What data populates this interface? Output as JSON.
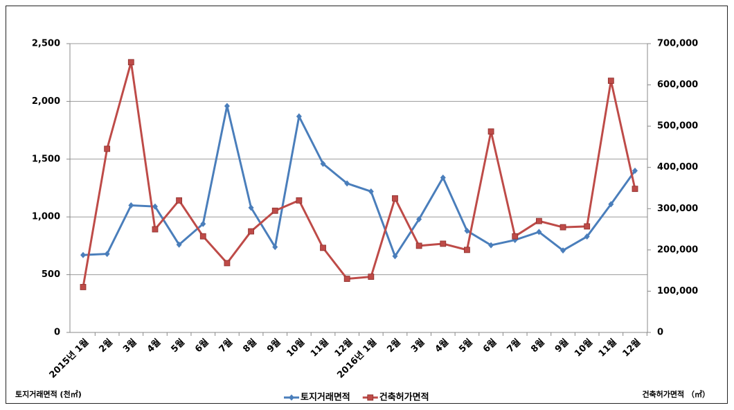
{
  "chart_data": {
    "type": "line",
    "categories": [
      "2015년 1월",
      "2월",
      "3월",
      "4월",
      "5월",
      "6월",
      "7월",
      "8월",
      "9월",
      "10월",
      "11월",
      "12월",
      "2016년 1월",
      "2월",
      "3월",
      "4월",
      "5월",
      "6월",
      "7월",
      "8월",
      "9월",
      "10월",
      "11월",
      "12월"
    ],
    "series": [
      {
        "name": "토지거래면적",
        "color": "#4a7ebb",
        "marker": "diamond",
        "values": [
          670,
          680,
          1100,
          1090,
          760,
          940,
          1960,
          1080,
          740,
          1870,
          1460,
          1290,
          1220,
          660,
          980,
          1340,
          880,
          755,
          800,
          870,
          710,
          830,
          1110,
          1400
        ]
      },
      {
        "name": "건축허가면적",
        "color": "#be4b48",
        "marker": "square",
        "axis": "y2",
        "values": [
          110000,
          445000,
          655000,
          250000,
          320000,
          233000,
          168000,
          245000,
          295000,
          320000,
          205000,
          130000,
          135000,
          325000,
          210000,
          215000,
          200000,
          487000,
          233000,
          270000,
          255000,
          257000,
          610000,
          348000
        ]
      }
    ],
    "ylim": [
      0,
      2500
    ],
    "yticks": [
      0,
      500,
      {
        "value": 1000,
        "label": "1,000"
      },
      {
        "value": 1500,
        "label": "1,500"
      },
      {
        "value": 2000,
        "label": "2,000"
      },
      {
        "value": 2500,
        "label": "2,500"
      }
    ],
    "y2lim": [
      0,
      700000
    ],
    "y2ticks": [
      0,
      {
        "value": 100000,
        "label": "100,000"
      },
      {
        "value": 200000,
        "label": "200,000"
      },
      {
        "value": 300000,
        "label": "300,000"
      },
      {
        "value": 400000,
        "label": "400,000"
      },
      {
        "value": 500000,
        "label": "500,000"
      },
      {
        "value": 600000,
        "label": "600,000"
      },
      {
        "value": 700000,
        "label": "700,000"
      }
    ],
    "ylabel": "토지거래면적 (천㎡)",
    "y2label": "건축허가면적 （㎡）",
    "grid": true,
    "legend": "bottom"
  }
}
